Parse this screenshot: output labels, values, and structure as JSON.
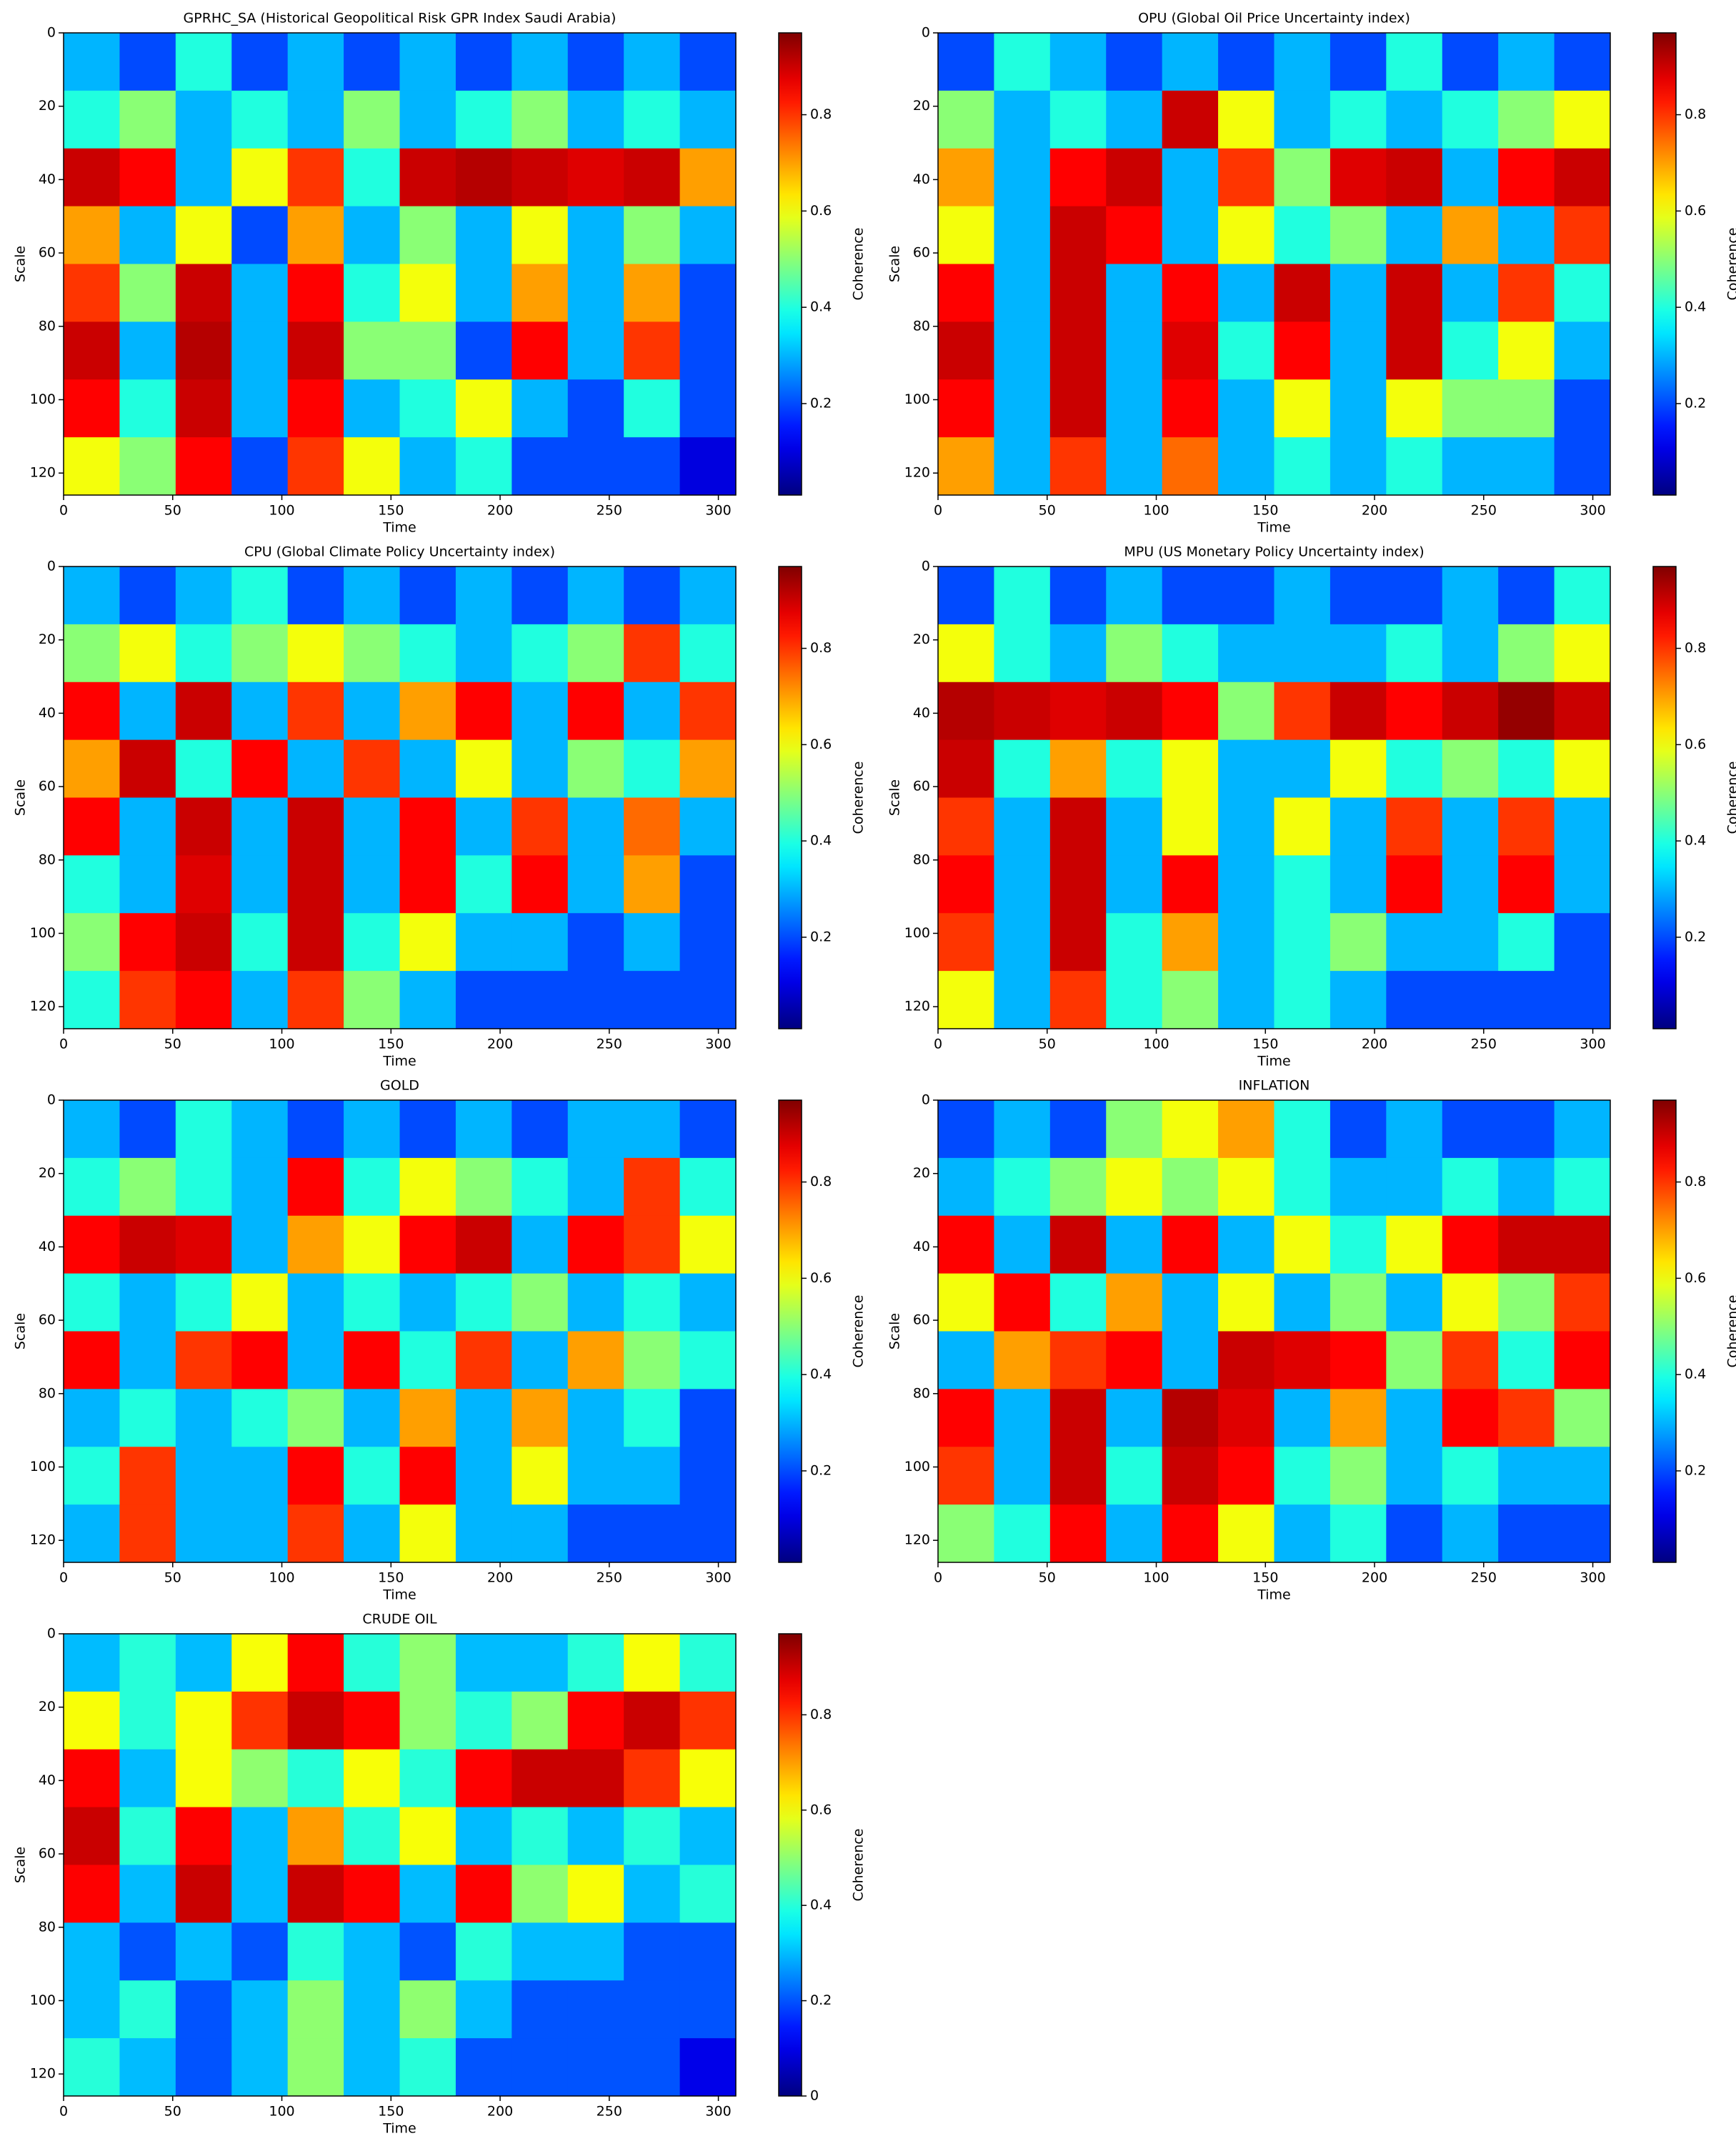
{
  "chart_data": [
    {
      "type": "heatmap",
      "title": "GPRHC_SA (Historical Geopolitical Risk GPR Index Saudi Arabia)",
      "xlabel": "Time",
      "ylabel": "Scale",
      "colorbar_label": "Coherence",
      "colormap": "jet",
      "xlim": [
        0,
        308
      ],
      "ylim": [
        0,
        126
      ],
      "y_inverted": true,
      "xticks": [
        0,
        50,
        100,
        150,
        200,
        250,
        300
      ],
      "yticks": [
        0,
        20,
        40,
        60,
        80,
        100,
        120
      ],
      "clim": [
        0.01,
        0.97
      ],
      "cticks": [
        0.2,
        0.4,
        0.6,
        0.8
      ],
      "z": [
        [
          0.3,
          0.2,
          0.4,
          0.2,
          0.3,
          0.2,
          0.3,
          0.2,
          0.3,
          0.2,
          0.3,
          0.2
        ],
        [
          0.4,
          0.5,
          0.3,
          0.4,
          0.3,
          0.5,
          0.3,
          0.4,
          0.5,
          0.3,
          0.4,
          0.3
        ],
        [
          0.9,
          0.85,
          0.3,
          0.6,
          0.8,
          0.4,
          0.9,
          0.92,
          0.9,
          0.88,
          0.9,
          0.7
        ],
        [
          0.7,
          0.3,
          0.6,
          0.2,
          0.7,
          0.3,
          0.5,
          0.3,
          0.6,
          0.3,
          0.5,
          0.3
        ],
        [
          0.8,
          0.5,
          0.9,
          0.3,
          0.85,
          0.4,
          0.6,
          0.3,
          0.7,
          0.3,
          0.7,
          0.2
        ],
        [
          0.9,
          0.3,
          0.92,
          0.3,
          0.9,
          0.5,
          0.5,
          0.2,
          0.85,
          0.3,
          0.8,
          0.2
        ],
        [
          0.85,
          0.4,
          0.9,
          0.3,
          0.85,
          0.3,
          0.4,
          0.6,
          0.3,
          0.2,
          0.4,
          0.2
        ],
        [
          0.6,
          0.5,
          0.85,
          0.2,
          0.8,
          0.6,
          0.3,
          0.4,
          0.2,
          0.2,
          0.2,
          0.1
        ]
      ]
    },
    {
      "type": "heatmap",
      "title": "OPU (Global Oil Price Uncertainty index)",
      "xlabel": "Time",
      "ylabel": "Scale",
      "colorbar_label": "Coherence",
      "colormap": "jet",
      "xlim": [
        0,
        308
      ],
      "ylim": [
        0,
        126
      ],
      "y_inverted": true,
      "xticks": [
        0,
        50,
        100,
        150,
        200,
        250,
        300
      ],
      "yticks": [
        0,
        20,
        40,
        60,
        80,
        100,
        120
      ],
      "clim": [
        0.01,
        0.97
      ],
      "cticks": [
        0.2,
        0.4,
        0.6,
        0.8
      ],
      "z": [
        [
          0.2,
          0.4,
          0.3,
          0.2,
          0.3,
          0.2,
          0.3,
          0.2,
          0.4,
          0.2,
          0.3,
          0.2
        ],
        [
          0.5,
          0.3,
          0.4,
          0.3,
          0.9,
          0.6,
          0.3,
          0.4,
          0.3,
          0.4,
          0.5,
          0.6
        ],
        [
          0.7,
          0.3,
          0.85,
          0.9,
          0.3,
          0.8,
          0.5,
          0.88,
          0.9,
          0.3,
          0.85,
          0.9
        ],
        [
          0.6,
          0.3,
          0.9,
          0.85,
          0.3,
          0.6,
          0.4,
          0.5,
          0.3,
          0.7,
          0.3,
          0.8
        ],
        [
          0.85,
          0.3,
          0.9,
          0.3,
          0.85,
          0.3,
          0.9,
          0.3,
          0.9,
          0.3,
          0.8,
          0.4
        ],
        [
          0.9,
          0.3,
          0.9,
          0.3,
          0.88,
          0.4,
          0.85,
          0.3,
          0.9,
          0.4,
          0.6,
          0.3
        ],
        [
          0.85,
          0.3,
          0.9,
          0.3,
          0.85,
          0.3,
          0.6,
          0.3,
          0.6,
          0.5,
          0.5,
          0.2
        ],
        [
          0.7,
          0.3,
          0.8,
          0.3,
          0.75,
          0.3,
          0.4,
          0.3,
          0.4,
          0.3,
          0.3,
          0.2
        ]
      ]
    },
    {
      "type": "heatmap",
      "title": "CPU (Global Climate Policy Uncertainty index)",
      "xlabel": "Time",
      "ylabel": "Scale",
      "colorbar_label": "Coherence",
      "colormap": "jet",
      "xlim": [
        0,
        308
      ],
      "ylim": [
        0,
        126
      ],
      "y_inverted": true,
      "xticks": [
        0,
        50,
        100,
        150,
        200,
        250,
        300
      ],
      "yticks": [
        0,
        20,
        40,
        60,
        80,
        100,
        120
      ],
      "clim": [
        0.01,
        0.97
      ],
      "cticks": [
        0.2,
        0.4,
        0.6,
        0.8
      ],
      "z": [
        [
          0.3,
          0.2,
          0.3,
          0.4,
          0.2,
          0.3,
          0.2,
          0.3,
          0.2,
          0.3,
          0.2,
          0.3
        ],
        [
          0.5,
          0.6,
          0.4,
          0.5,
          0.6,
          0.5,
          0.4,
          0.3,
          0.4,
          0.5,
          0.8,
          0.4
        ],
        [
          0.85,
          0.3,
          0.9,
          0.3,
          0.8,
          0.3,
          0.7,
          0.85,
          0.3,
          0.85,
          0.3,
          0.8
        ],
        [
          0.7,
          0.9,
          0.4,
          0.85,
          0.3,
          0.8,
          0.3,
          0.6,
          0.3,
          0.5,
          0.4,
          0.7
        ],
        [
          0.85,
          0.3,
          0.9,
          0.3,
          0.9,
          0.3,
          0.85,
          0.3,
          0.8,
          0.3,
          0.75,
          0.3
        ],
        [
          0.4,
          0.3,
          0.88,
          0.3,
          0.9,
          0.3,
          0.85,
          0.4,
          0.85,
          0.3,
          0.7,
          0.2
        ],
        [
          0.5,
          0.85,
          0.9,
          0.4,
          0.9,
          0.4,
          0.6,
          0.3,
          0.3,
          0.2,
          0.3,
          0.2
        ],
        [
          0.4,
          0.8,
          0.85,
          0.3,
          0.8,
          0.5,
          0.3,
          0.2,
          0.2,
          0.2,
          0.2,
          0.2
        ]
      ]
    },
    {
      "type": "heatmap",
      "title": "MPU (US Monetary Policy Uncertainty index)",
      "xlabel": "Time",
      "ylabel": "Scale",
      "colorbar_label": "Coherence",
      "colormap": "jet",
      "xlim": [
        0,
        308
      ],
      "ylim": [
        0,
        126
      ],
      "y_inverted": true,
      "xticks": [
        0,
        50,
        100,
        150,
        200,
        250,
        300
      ],
      "yticks": [
        0,
        20,
        40,
        60,
        80,
        100,
        120
      ],
      "clim": [
        0.01,
        0.97
      ],
      "cticks": [
        0.2,
        0.4,
        0.6,
        0.8
      ],
      "z": [
        [
          0.2,
          0.4,
          0.2,
          0.3,
          0.2,
          0.2,
          0.3,
          0.2,
          0.2,
          0.3,
          0.2,
          0.4
        ],
        [
          0.6,
          0.4,
          0.3,
          0.5,
          0.4,
          0.3,
          0.3,
          0.3,
          0.4,
          0.3,
          0.5,
          0.6
        ],
        [
          0.92,
          0.9,
          0.88,
          0.9,
          0.85,
          0.5,
          0.8,
          0.9,
          0.85,
          0.9,
          0.95,
          0.9
        ],
        [
          0.9,
          0.4,
          0.7,
          0.4,
          0.6,
          0.3,
          0.3,
          0.6,
          0.4,
          0.5,
          0.4,
          0.6
        ],
        [
          0.8,
          0.3,
          0.9,
          0.3,
          0.6,
          0.3,
          0.6,
          0.3,
          0.8,
          0.3,
          0.8,
          0.3
        ],
        [
          0.85,
          0.3,
          0.9,
          0.3,
          0.85,
          0.3,
          0.4,
          0.3,
          0.85,
          0.3,
          0.85,
          0.3
        ],
        [
          0.8,
          0.3,
          0.9,
          0.4,
          0.7,
          0.3,
          0.4,
          0.5,
          0.3,
          0.3,
          0.4,
          0.2
        ],
        [
          0.6,
          0.3,
          0.8,
          0.4,
          0.5,
          0.3,
          0.4,
          0.3,
          0.2,
          0.2,
          0.2,
          0.2
        ]
      ]
    },
    {
      "type": "heatmap",
      "title": "GOLD",
      "xlabel": "Time",
      "ylabel": "Scale",
      "colorbar_label": "Coherence",
      "colormap": "jet",
      "xlim": [
        0,
        308
      ],
      "ylim": [
        0,
        126
      ],
      "y_inverted": true,
      "xticks": [
        0,
        50,
        100,
        150,
        200,
        250,
        300
      ],
      "yticks": [
        0,
        20,
        40,
        60,
        80,
        100,
        120
      ],
      "clim": [
        0.01,
        0.97
      ],
      "cticks": [
        0.2,
        0.4,
        0.6,
        0.8
      ],
      "z": [
        [
          0.3,
          0.2,
          0.4,
          0.3,
          0.2,
          0.3,
          0.2,
          0.3,
          0.2,
          0.3,
          0.3,
          0.2
        ],
        [
          0.4,
          0.5,
          0.4,
          0.3,
          0.85,
          0.4,
          0.6,
          0.5,
          0.4,
          0.3,
          0.8,
          0.4
        ],
        [
          0.85,
          0.9,
          0.88,
          0.3,
          0.7,
          0.6,
          0.85,
          0.9,
          0.3,
          0.85,
          0.8,
          0.6
        ],
        [
          0.4,
          0.3,
          0.4,
          0.6,
          0.3,
          0.4,
          0.3,
          0.4,
          0.5,
          0.3,
          0.4,
          0.3
        ],
        [
          0.85,
          0.3,
          0.8,
          0.85,
          0.3,
          0.85,
          0.4,
          0.8,
          0.3,
          0.7,
          0.5,
          0.4
        ],
        [
          0.3,
          0.4,
          0.3,
          0.4,
          0.5,
          0.3,
          0.7,
          0.3,
          0.7,
          0.3,
          0.4,
          0.2
        ],
        [
          0.4,
          0.8,
          0.3,
          0.3,
          0.85,
          0.4,
          0.85,
          0.3,
          0.6,
          0.3,
          0.3,
          0.2
        ],
        [
          0.3,
          0.8,
          0.3,
          0.3,
          0.8,
          0.3,
          0.6,
          0.3,
          0.3,
          0.2,
          0.2,
          0.2
        ]
      ]
    },
    {
      "type": "heatmap",
      "title": "INFLATION",
      "xlabel": "Time",
      "ylabel": "Scale",
      "colorbar_label": "Coherence",
      "colormap": "jet",
      "xlim": [
        0,
        308
      ],
      "ylim": [
        0,
        126
      ],
      "y_inverted": true,
      "xticks": [
        0,
        50,
        100,
        150,
        200,
        250,
        300
      ],
      "yticks": [
        0,
        20,
        40,
        60,
        80,
        100,
        120
      ],
      "clim": [
        0.01,
        0.97
      ],
      "cticks": [
        0.2,
        0.4,
        0.6,
        0.8
      ],
      "z": [
        [
          0.2,
          0.3,
          0.2,
          0.5,
          0.6,
          0.7,
          0.4,
          0.2,
          0.3,
          0.2,
          0.2,
          0.3
        ],
        [
          0.3,
          0.4,
          0.5,
          0.6,
          0.5,
          0.6,
          0.4,
          0.3,
          0.3,
          0.4,
          0.3,
          0.4
        ],
        [
          0.85,
          0.3,
          0.9,
          0.3,
          0.85,
          0.3,
          0.6,
          0.4,
          0.6,
          0.85,
          0.9,
          0.9
        ],
        [
          0.6,
          0.85,
          0.4,
          0.7,
          0.3,
          0.6,
          0.3,
          0.5,
          0.3,
          0.6,
          0.5,
          0.8
        ],
        [
          0.3,
          0.7,
          0.8,
          0.85,
          0.3,
          0.9,
          0.88,
          0.85,
          0.5,
          0.8,
          0.4,
          0.85
        ],
        [
          0.85,
          0.3,
          0.9,
          0.3,
          0.92,
          0.88,
          0.3,
          0.7,
          0.3,
          0.85,
          0.8,
          0.5
        ],
        [
          0.8,
          0.3,
          0.9,
          0.4,
          0.9,
          0.85,
          0.4,
          0.5,
          0.3,
          0.4,
          0.3,
          0.3
        ],
        [
          0.5,
          0.4,
          0.85,
          0.3,
          0.85,
          0.6,
          0.3,
          0.4,
          0.2,
          0.3,
          0.2,
          0.2
        ]
      ]
    },
    {
      "type": "heatmap",
      "title": "CRUDE OIL",
      "xlabel": "Time",
      "ylabel": "Scale",
      "colorbar_label": "Coherence",
      "colormap": "jet",
      "xlim": [
        0,
        308
      ],
      "ylim": [
        0,
        126
      ],
      "y_inverted": true,
      "xticks": [
        0,
        50,
        100,
        150,
        200,
        250,
        300
      ],
      "yticks": [
        0,
        20,
        40,
        60,
        80,
        100,
        120
      ],
      "clim": [
        0,
        0.97
      ],
      "cticks": [
        0.0,
        0.2,
        0.4,
        0.6,
        0.8
      ],
      "z": [
        [
          0.3,
          0.4,
          0.3,
          0.6,
          0.85,
          0.4,
          0.5,
          0.3,
          0.3,
          0.4,
          0.6,
          0.4
        ],
        [
          0.6,
          0.4,
          0.6,
          0.8,
          0.9,
          0.85,
          0.5,
          0.4,
          0.5,
          0.85,
          0.9,
          0.8
        ],
        [
          0.85,
          0.3,
          0.6,
          0.5,
          0.4,
          0.6,
          0.4,
          0.85,
          0.9,
          0.9,
          0.8,
          0.6
        ],
        [
          0.9,
          0.4,
          0.85,
          0.3,
          0.7,
          0.4,
          0.6,
          0.3,
          0.4,
          0.3,
          0.4,
          0.3
        ],
        [
          0.85,
          0.3,
          0.9,
          0.3,
          0.9,
          0.85,
          0.3,
          0.85,
          0.5,
          0.6,
          0.3,
          0.4
        ],
        [
          0.3,
          0.2,
          0.3,
          0.2,
          0.4,
          0.3,
          0.2,
          0.4,
          0.3,
          0.3,
          0.2,
          0.2
        ],
        [
          0.3,
          0.4,
          0.2,
          0.3,
          0.5,
          0.3,
          0.5,
          0.3,
          0.2,
          0.2,
          0.2,
          0.2
        ],
        [
          0.4,
          0.3,
          0.2,
          0.3,
          0.5,
          0.3,
          0.4,
          0.2,
          0.2,
          0.2,
          0.2,
          0.1
        ]
      ]
    }
  ]
}
